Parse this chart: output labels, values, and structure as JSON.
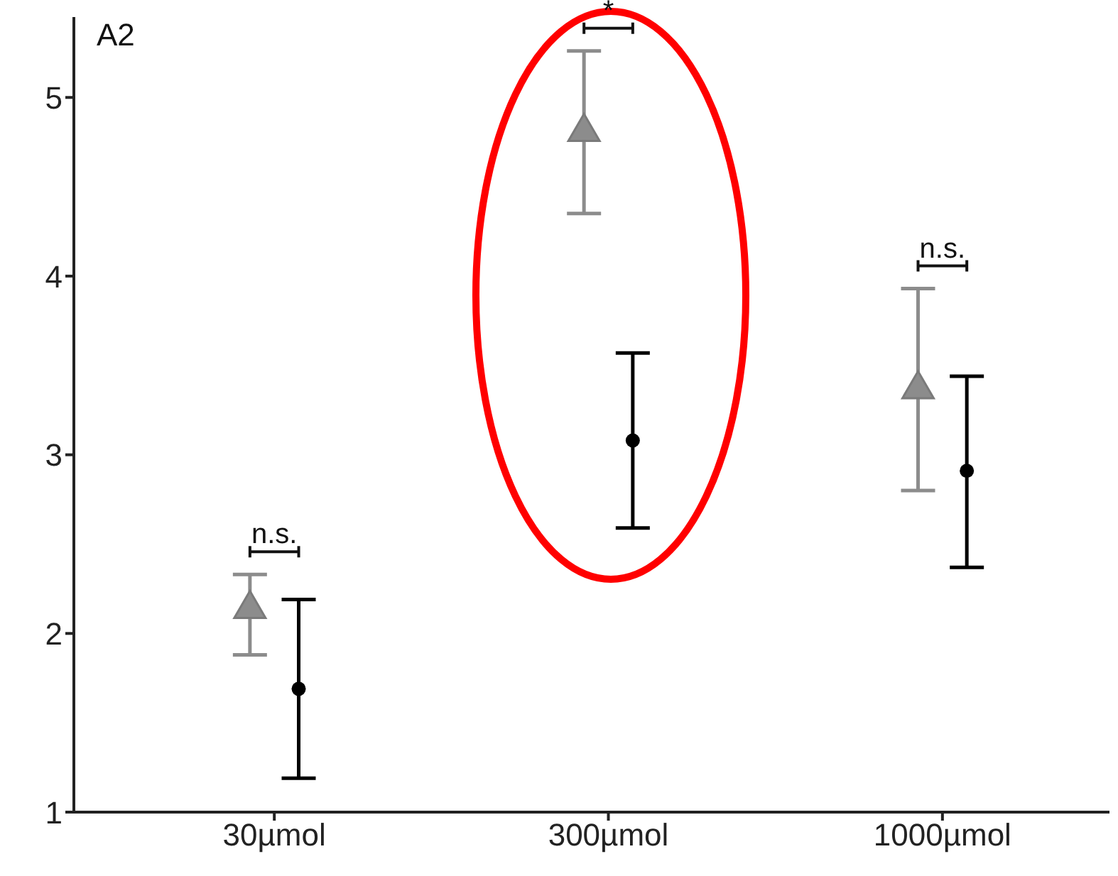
{
  "chart_data": {
    "type": "scatter",
    "title": "A2",
    "categories": [
      "30µmol",
      "300µmol",
      "1000µmol"
    ],
    "series": [
      {
        "color": "#8c8c8c",
        "marker": "triangle",
        "values": [
          2.15,
          4.82,
          3.38
        ],
        "errors": [
          [
            1.88,
            2.33
          ],
          [
            4.35,
            5.26
          ],
          [
            2.8,
            3.93
          ]
        ]
      },
      {
        "color": "#000000",
        "marker": "circle",
        "values": [
          1.69,
          3.08,
          2.91
        ],
        "errors": [
          [
            1.19,
            2.19
          ],
          [
            2.59,
            3.57
          ],
          [
            2.37,
            3.44
          ]
        ]
      }
    ],
    "ylim": [
      1,
      5.45
    ],
    "yticks": [
      1,
      2,
      3,
      4,
      5
    ],
    "grid": false,
    "legend": false,
    "annotations": [
      "n.s.",
      "*",
      "n.s."
    ]
  }
}
